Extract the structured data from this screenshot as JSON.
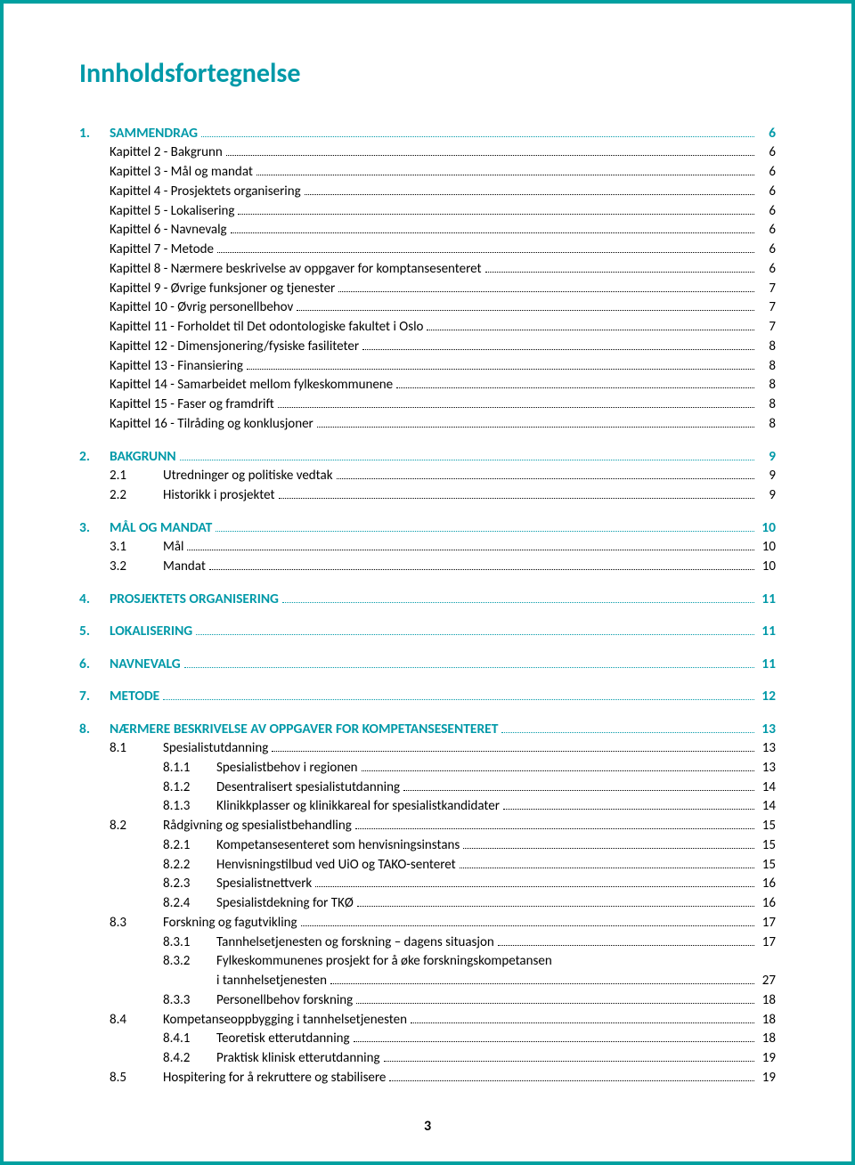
{
  "title": "Innholdsfortegnelse",
  "page_number": "3",
  "colors": {
    "accent": "#0099a8",
    "border": "#00a0a0",
    "text": "#000000",
    "bg": "#ffffff"
  },
  "toc": [
    {
      "type": "section",
      "num": "1.",
      "label": "SAMMENDRAG",
      "page": "6"
    },
    {
      "type": "child1",
      "label": "Kapittel 2 - Bakgrunn",
      "page": "6"
    },
    {
      "type": "child1",
      "label": "Kapittel 3 - Mål og mandat",
      "page": "6"
    },
    {
      "type": "child1",
      "label": "Kapittel 4 - Prosjektets organisering",
      "page": "6"
    },
    {
      "type": "child1",
      "label": "Kapittel 5 - Lokalisering",
      "page": "6"
    },
    {
      "type": "child1",
      "label": "Kapittel 6 - Navnevalg",
      "page": "6"
    },
    {
      "type": "child1",
      "label": "Kapittel 7 - Metode",
      "page": "6"
    },
    {
      "type": "child1",
      "label": "Kapittel 8 - Nærmere beskrivelse av oppgaver for komptansesenteret",
      "page": "6"
    },
    {
      "type": "child1",
      "label": "Kapittel 9 - Øvrige funksjoner og tjenester",
      "page": "7"
    },
    {
      "type": "child1",
      "label": "Kapittel 10 - Øvrig personellbehov",
      "page": "7"
    },
    {
      "type": "child1",
      "label": "Kapittel 11 - Forholdet til Det odontologiske fakultet i Oslo",
      "page": "7"
    },
    {
      "type": "child1",
      "label": "Kapittel 12 - Dimensjonering/fysiske fasiliteter",
      "page": "8"
    },
    {
      "type": "child1",
      "label": "Kapittel 13 - Finansiering",
      "page": "8"
    },
    {
      "type": "child1",
      "label": "Kapittel 14 - Samarbeidet mellom fylkeskommunene",
      "page": "8"
    },
    {
      "type": "child1",
      "label": "Kapittel 15 - Faser og framdrift",
      "page": "8"
    },
    {
      "type": "child1",
      "label": "Kapittel 16 - Tilråding og konklusjoner",
      "page": "8"
    },
    {
      "type": "gap"
    },
    {
      "type": "section",
      "num": "2.",
      "label": "BAKGRUNN",
      "page": "9"
    },
    {
      "type": "child2",
      "num": "2.1",
      "label": "Utredninger og politiske vedtak",
      "page": "9"
    },
    {
      "type": "child2",
      "num": "2.2",
      "label": "Historikk i prosjektet",
      "page": "9"
    },
    {
      "type": "gap"
    },
    {
      "type": "section",
      "num": "3.",
      "label": "MÅL OG MANDAT",
      "page": "10"
    },
    {
      "type": "child2",
      "num": "3.1",
      "label": "Mål",
      "page": "10"
    },
    {
      "type": "child2",
      "num": "3.2",
      "label": "Mandat",
      "page": "10"
    },
    {
      "type": "gap"
    },
    {
      "type": "section",
      "num": "4.",
      "label": "PROSJEKTETS ORGANISERING",
      "page": "11"
    },
    {
      "type": "gap"
    },
    {
      "type": "section",
      "num": "5.",
      "label": "LOKALISERING",
      "page": "11"
    },
    {
      "type": "gap"
    },
    {
      "type": "section",
      "num": "6.",
      "label": "NAVNEVALG",
      "page": "11"
    },
    {
      "type": "gap"
    },
    {
      "type": "section",
      "num": "7.",
      "label": "METODE",
      "page": "12"
    },
    {
      "type": "gap"
    },
    {
      "type": "section",
      "num": "8.",
      "label": "NÆRMERE BESKRIVELSE AV OPPGAVER FOR KOMPETANSESENTERET",
      "page": "13"
    },
    {
      "type": "child2",
      "num": "8.1",
      "label": "Spesialistutdanning",
      "page": "13"
    },
    {
      "type": "child3",
      "num": "8.1.1",
      "label": "Spesialistbehov i regionen",
      "page": "13"
    },
    {
      "type": "child3",
      "num": "8.1.2",
      "label": "Desentralisert spesialistutdanning",
      "page": "14"
    },
    {
      "type": "child3",
      "num": "8.1.3",
      "label": "Klinikkplasser og klinikkareal for spesialistkandidater",
      "page": "14"
    },
    {
      "type": "child2",
      "num": "8.2",
      "label": "Rådgivning og spesialistbehandling",
      "page": "15"
    },
    {
      "type": "child3",
      "num": "8.2.1",
      "label": "Kompetansesenteret som henvisningsinstans",
      "page": "15"
    },
    {
      "type": "child3",
      "num": "8.2.2",
      "label": "Henvisningstilbud ved UiO og TAKO-senteret",
      "page": "15"
    },
    {
      "type": "child3",
      "num": "8.2.3",
      "label": "Spesialistnettverk",
      "page": "16"
    },
    {
      "type": "child3",
      "num": "8.2.4",
      "label": "Spesialistdekning for TKØ",
      "page": "16"
    },
    {
      "type": "child2",
      "num": "8.3",
      "label": "Forskning og fagutvikling",
      "page": "17"
    },
    {
      "type": "child3",
      "num": "8.3.1",
      "label": "Tannhelsetjenesten og forskning – dagens situasjon",
      "page": "17"
    },
    {
      "type": "child3",
      "num": "8.3.2",
      "label": "Fylkeskommunenes prosjekt for å øke forskningskompetansen",
      "page": ""
    },
    {
      "type": "child3cont",
      "label": "i tannhelsetjenesten",
      "page": "27"
    },
    {
      "type": "child3",
      "num": "8.3.3",
      "label": "Personellbehov forskning",
      "page": "18"
    },
    {
      "type": "child2",
      "num": "8.4",
      "label": "Kompetanseoppbygging i tannhelsetjenesten",
      "page": "18"
    },
    {
      "type": "child3",
      "num": "8.4.1",
      "label": "Teoretisk etterutdanning",
      "page": "18"
    },
    {
      "type": "child3",
      "num": "8.4.2",
      "label": "Praktisk klinisk etterutdanning",
      "page": "19"
    },
    {
      "type": "child2",
      "num": "8.5",
      "label": "Hospitering for å rekruttere og stabilisere",
      "page": "19"
    }
  ]
}
